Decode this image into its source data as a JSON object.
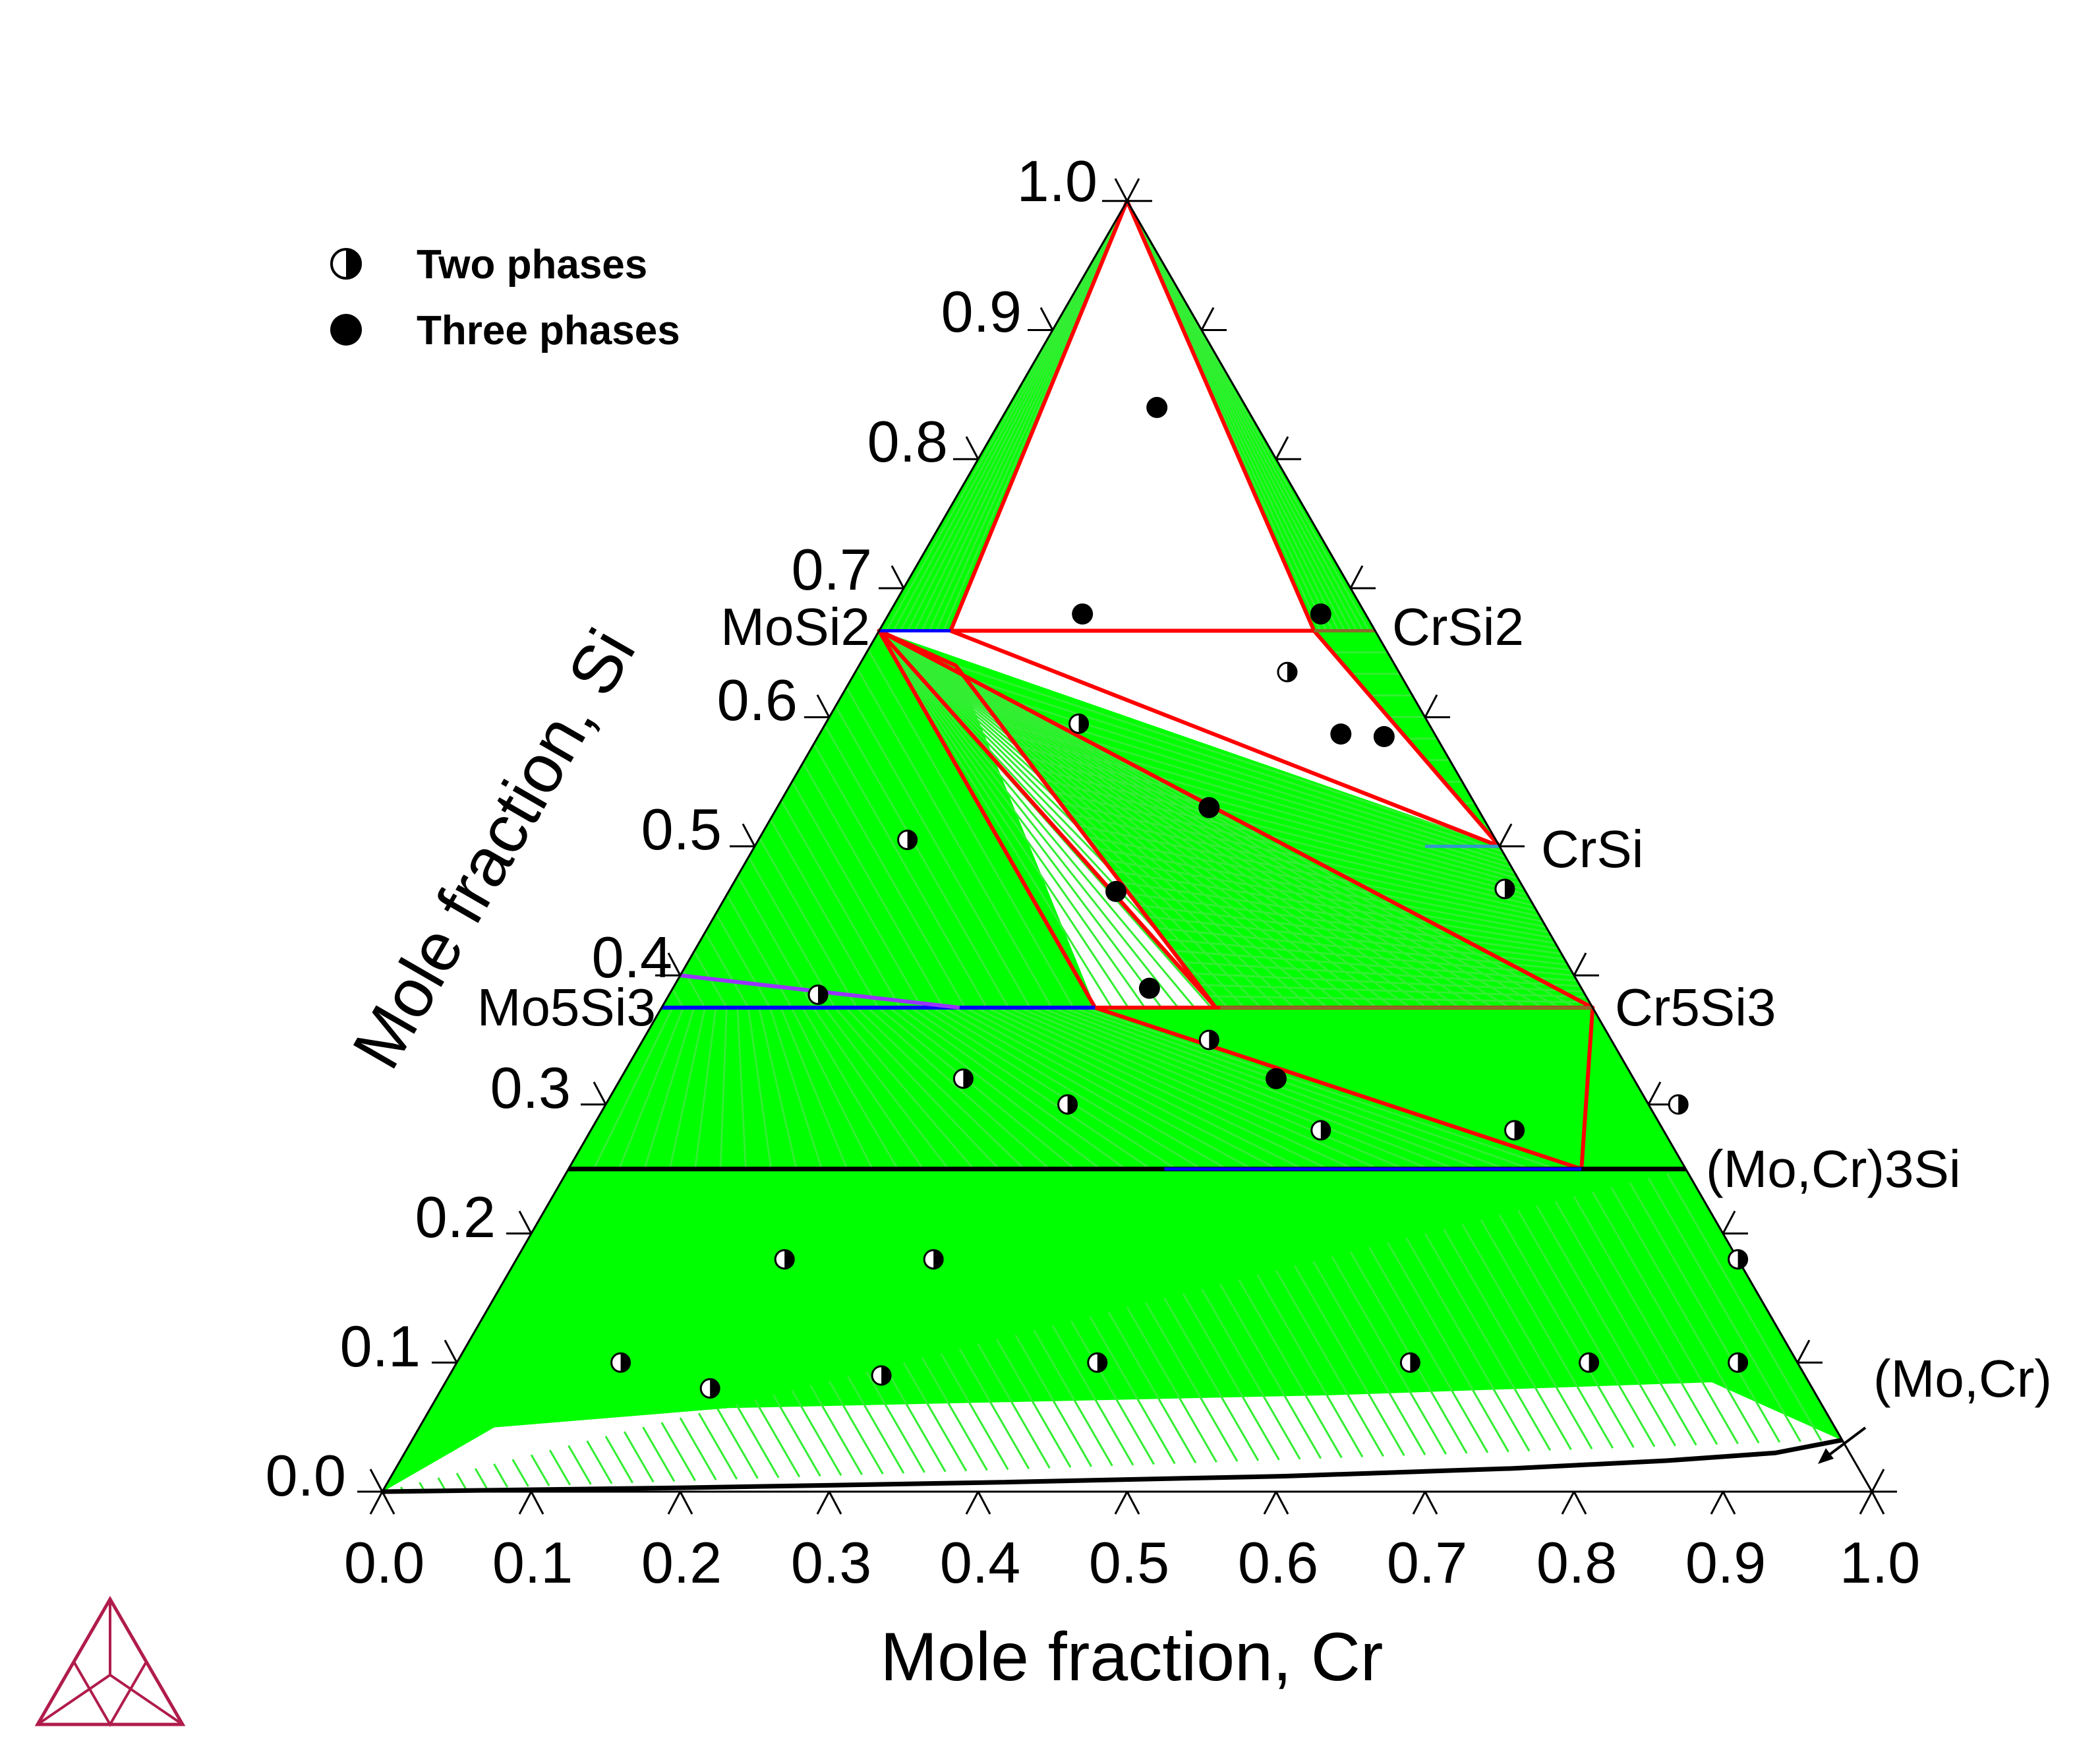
{
  "chart_data": {
    "type": "ternary",
    "xlabel": "Mole fraction, Cr",
    "ylabel": "Mole fraction, Si",
    "x_ticks": [
      "0.0",
      "0.1",
      "0.2",
      "0.3",
      "0.4",
      "0.5",
      "0.6",
      "0.7",
      "0.8",
      "0.9",
      "1.0"
    ],
    "y_ticks": [
      "0.0",
      "0.1",
      "0.2",
      "0.3",
      "0.4",
      "0.5",
      "0.6",
      "0.7",
      "0.8",
      "0.9",
      "1.0"
    ],
    "legend": [
      {
        "label": "Two phases",
        "marker": "half-filled-circle"
      },
      {
        "label": "Three phases",
        "marker": "filled-circle"
      }
    ],
    "phase_labels": [
      {
        "text": "MoSi2",
        "cr": 0.0,
        "si": 0.667
      },
      {
        "text": "CrSi2",
        "cr": 0.333,
        "si": 0.667
      },
      {
        "text": "CrSi",
        "cr": 0.5,
        "si": 0.5
      },
      {
        "text": "Mo5Si3",
        "cr": 0.0,
        "si": 0.375
      },
      {
        "text": "Cr5Si3",
        "cr": 0.625,
        "si": 0.375
      },
      {
        "text": "(Mo,Cr)3Si",
        "cr": 0.75,
        "si": 0.25
      },
      {
        "text": "(Mo,Cr)",
        "cr": 0.96,
        "si": 0.04
      }
    ],
    "three_phase_triangles": [
      [
        [
          0.0,
          1.0
        ],
        [
          0.048,
          0.667
        ],
        [
          0.292,
          0.667
        ]
      ],
      [
        [
          0.048,
          0.667
        ],
        [
          0.292,
          0.667
        ],
        [
          0.5,
          0.5
        ]
      ],
      [
        [
          0.0,
          0.667
        ],
        [
          0.291,
          0.375
        ],
        [
          0.625,
          0.375
        ]
      ],
      [
        [
          0.0,
          0.667
        ],
        [
          0.065,
          0.64
        ],
        [
          0.372,
          0.375
        ]
      ],
      [
        [
          0.291,
          0.375
        ],
        [
          0.625,
          0.375
        ],
        [
          0.68,
          0.25
        ]
      ]
    ],
    "two_phase_points": [
      {
        "cr": 0.11,
        "si": 0.1
      },
      {
        "cr": 0.18,
        "si": 0.08
      },
      {
        "cr": 0.29,
        "si": 0.09
      },
      {
        "cr": 0.43,
        "si": 0.1
      },
      {
        "cr": 0.64,
        "si": 0.1
      },
      {
        "cr": 0.76,
        "si": 0.1
      },
      {
        "cr": 0.86,
        "si": 0.1
      },
      {
        "cr": 0.18,
        "si": 0.18
      },
      {
        "cr": 0.28,
        "si": 0.18
      },
      {
        "cr": 0.82,
        "si": 0.18
      },
      {
        "cr": 0.23,
        "si": 0.32
      },
      {
        "cr": 0.31,
        "si": 0.3
      },
      {
        "cr": 0.38,
        "si": 0.35
      },
      {
        "cr": 0.49,
        "si": 0.28
      },
      {
        "cr": 0.62,
        "si": 0.28
      },
      {
        "cr": 0.72,
        "si": 0.3
      },
      {
        "cr": 0.1,
        "si": 0.385
      },
      {
        "cr": 0.1,
        "si": 0.505
      },
      {
        "cr": 0.17,
        "si": 0.595
      },
      {
        "cr": 0.29,
        "si": 0.635
      },
      {
        "cr": 0.52,
        "si": 0.467
      }
    ],
    "three_phase_points": [
      {
        "cr": 0.1,
        "si": 0.84
      },
      {
        "cr": 0.13,
        "si": 0.68
      },
      {
        "cr": 0.29,
        "si": 0.68
      },
      {
        "cr": 0.35,
        "si": 0.587
      },
      {
        "cr": 0.38,
        "si": 0.585
      },
      {
        "cr": 0.29,
        "si": 0.53
      },
      {
        "cr": 0.26,
        "si": 0.465
      },
      {
        "cr": 0.32,
        "si": 0.39
      },
      {
        "cr": 0.44,
        "si": 0.32
      }
    ],
    "colors": {
      "two_phase_fill": "#00ff00",
      "tie_line": "#00ff00",
      "three_phase_boundary": "#ff0000",
      "phase_line_black": "#000000",
      "phase_line_blue": "#0000ff",
      "phase_line_purple": "#9933ff",
      "logo": "#b01c4b"
    }
  }
}
